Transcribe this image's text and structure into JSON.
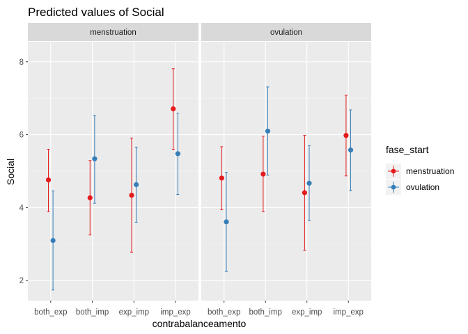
{
  "chart_data": {
    "type": "scatter",
    "subtype": "point-errorbar-faceted",
    "title": "Predicted values of Social",
    "xlabel": "contrabalanceamento",
    "ylabel": "Social",
    "categories": [
      "both_exp",
      "both_imp",
      "exp_imp",
      "imp_exp"
    ],
    "ylim": [
      1.45,
      8.55
    ],
    "yticks": [
      2,
      4,
      6,
      8
    ],
    "grid": true,
    "legend": {
      "title": "fase_start",
      "placement": "right",
      "entries": [
        "menstruation",
        "ovulation"
      ]
    },
    "colors": {
      "menstruation": "#e41a1c",
      "ovulation": "#377eb8"
    },
    "facets": [
      {
        "label": "menstruation",
        "series": [
          {
            "name": "menstruation",
            "values": [
              4.76,
              4.27,
              4.34,
              6.71
            ],
            "lower": [
              3.89,
              3.25,
              2.78,
              5.6
            ],
            "upper": [
              5.6,
              5.29,
              5.91,
              7.81
            ]
          },
          {
            "name": "ovulation",
            "values": [
              3.1,
              5.34,
              4.63,
              5.48
            ],
            "lower": [
              1.74,
              4.12,
              3.6,
              4.36
            ],
            "upper": [
              4.46,
              6.53,
              5.66,
              6.59
            ]
          }
        ]
      },
      {
        "label": "ovulation",
        "series": [
          {
            "name": "menstruation",
            "values": [
              4.81,
              4.92,
              4.41,
              5.98
            ],
            "lower": [
              3.94,
              3.89,
              2.83,
              4.87
            ],
            "upper": [
              5.67,
              5.96,
              5.98,
              7.08
            ]
          },
          {
            "name": "ovulation",
            "values": [
              3.61,
              6.1,
              4.67,
              5.58
            ],
            "lower": [
              2.25,
              4.89,
              3.65,
              4.47
            ],
            "upper": [
              4.97,
              7.31,
              5.7,
              6.68
            ]
          }
        ]
      }
    ]
  }
}
